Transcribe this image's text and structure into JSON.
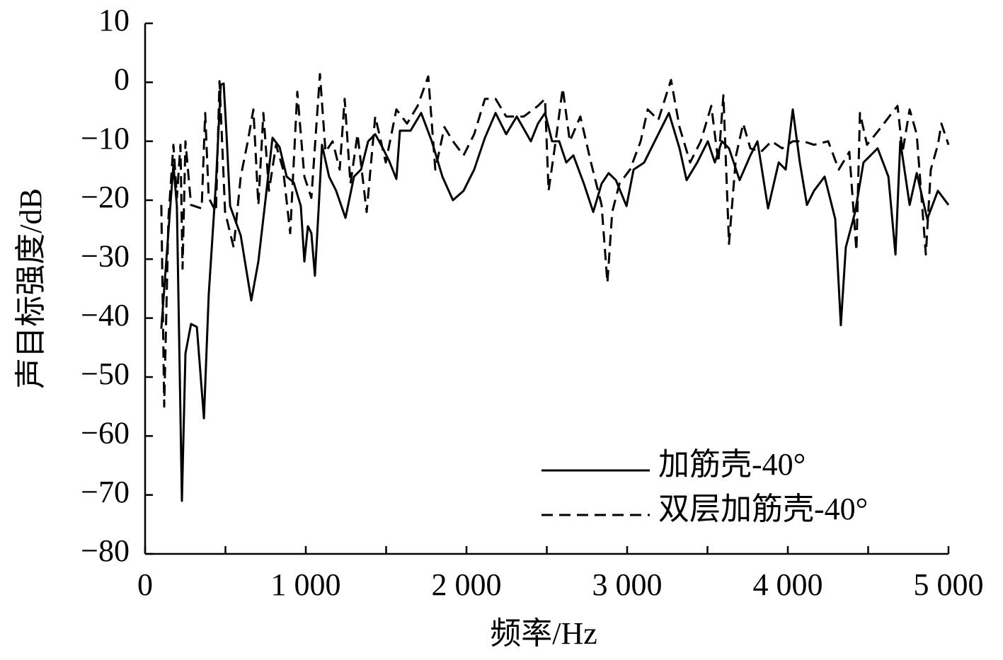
{
  "chart_data": {
    "type": "line",
    "x_label": "频率/Hz",
    "y_label": "声目标强度/dB",
    "xlim": [
      0,
      5000
    ],
    "xticks": [
      0,
      {
        "value": 1000,
        "label": "1 000"
      },
      {
        "value": 2000,
        "label": "2 000"
      },
      {
        "value": 3000,
        "label": "3 000"
      },
      {
        "value": 4000,
        "label": "4 000"
      },
      {
        "value": 5000,
        "label": "5 000"
      }
    ],
    "xminor_ticks": [
      500,
      1500,
      2500,
      3500,
      4500
    ],
    "ylim": [
      -80,
      10
    ],
    "yticks": [
      {
        "value": -80,
        "label": "−80"
      },
      {
        "value": -70,
        "label": "−70"
      },
      {
        "value": -60,
        "label": "−60"
      },
      {
        "value": -50,
        "label": "−50"
      },
      {
        "value": -40,
        "label": "−40"
      },
      {
        "value": -30,
        "label": "−30"
      },
      {
        "value": -20,
        "label": "−20"
      },
      {
        "value": -10,
        "label": "−10"
      },
      0,
      10
    ],
    "grid": false,
    "legend": "lower right",
    "series": [
      {
        "name": "加筋壳-40°",
        "color": "#000000",
        "style": "solid",
        "x": [
          101,
          154,
          176,
          198,
          229,
          251,
          286,
          322,
          366,
          396,
          441,
          471,
          489,
          507,
          529,
          595,
          661,
          705,
          749,
          793,
          837,
          881,
          925,
          969,
          991,
          1013,
          1035,
          1057,
          1079,
          1101,
          1145,
          1189,
          1247,
          1300,
          1344,
          1388,
          1432,
          1476,
          1520,
          1564,
          1586,
          1652,
          1718,
          1784,
          1850,
          1916,
          1982,
          2048,
          2115,
          2181,
          2247,
          2313,
          2401,
          2445,
          2489,
          2533,
          2577,
          2621,
          2665,
          2731,
          2789,
          2841,
          2885,
          2930,
          2996,
          3040,
          3106,
          3172,
          3260,
          3326,
          3370,
          3436,
          3502,
          3546,
          3590,
          3634,
          3700,
          3767,
          3811,
          3877,
          3943,
          3987,
          4031,
          4075,
          4119,
          4163,
          4229,
          4295,
          4330,
          4361,
          4419,
          4471,
          4559,
          4626,
          4670,
          4700,
          4758,
          4802,
          4868,
          4934,
          5000
        ],
        "values": [
          -41.8,
          -22,
          -14,
          -21,
          -71,
          -46,
          -41,
          -41.5,
          -57,
          -36,
          -17,
          -0.4,
          -0.2,
          -9,
          -21,
          -26,
          -37,
          -30.4,
          -20,
          -9.4,
          -11,
          -16,
          -17,
          -21,
          -30.4,
          -24.4,
          -25.6,
          -32.8,
          -22,
          -10.6,
          -16,
          -18.4,
          -23,
          -16,
          -14.8,
          -10,
          -8.8,
          -11,
          -13.4,
          -16.4,
          -8.2,
          -8.2,
          -5.2,
          -10,
          -16,
          -20,
          -18.4,
          -14.8,
          -9.4,
          -5.2,
          -8.8,
          -5.8,
          -10,
          -7,
          -5.2,
          -10,
          -10,
          -13.6,
          -12.4,
          -17.2,
          -22,
          -17.2,
          -15.4,
          -16.6,
          -21,
          -14.8,
          -13.6,
          -10,
          -5.2,
          -11.2,
          -16.6,
          -13.6,
          -10,
          -13.6,
          -10,
          -11.2,
          -16.6,
          -12.4,
          -10,
          -21.4,
          -13.6,
          -14.8,
          -4.6,
          -13.6,
          -20.8,
          -18.4,
          -16,
          -23.2,
          -41.2,
          -28,
          -22,
          -13.6,
          -11.2,
          -16,
          -29.2,
          -10,
          -20.8,
          -15.4,
          -23.2,
          -18.4,
          -20.8
        ]
      },
      {
        "name": "双层加筋壳-40°",
        "color": "#000000",
        "style": "dashed",
        "x": [
          101,
          119,
          145,
          176,
          198,
          220,
          233,
          251,
          286,
          352,
          374,
          396,
          441,
          463,
          498,
          551,
          595,
          639,
          674,
          705,
          736,
          771,
          815,
          859,
          903,
          947,
          991,
          1035,
          1088,
          1123,
          1167,
          1211,
          1242,
          1278,
          1322,
          1379,
          1432,
          1498,
          1564,
          1630,
          1696,
          1762,
          1806,
          1863,
          1916,
          1982,
          2048,
          2115,
          2181,
          2247,
          2357,
          2445,
          2489,
          2511,
          2555,
          2599,
          2643,
          2709,
          2775,
          2841,
          2877,
          2907,
          2952,
          3018,
          3084,
          3128,
          3194,
          3273,
          3326,
          3392,
          3458,
          3524,
          3568,
          3599,
          3634,
          3678,
          3722,
          3767,
          3833,
          3899,
          3965,
          4031,
          4097,
          4163,
          4251,
          4317,
          4383,
          4427,
          4449,
          4493,
          4581,
          4648,
          4683,
          4714,
          4758,
          4802,
          4859,
          4890,
          4934,
          4956,
          5000
        ],
        "values": [
          -20.8,
          -55,
          -23.2,
          -10.6,
          -19.6,
          -10.6,
          -31.6,
          -10,
          -20.8,
          -21.4,
          -5.2,
          -19.6,
          -22,
          0.2,
          -22,
          -28,
          -16,
          -10,
          -4.6,
          -20.8,
          -5.2,
          -18.4,
          -10.6,
          -14.8,
          -25.6,
          -1.6,
          -16,
          -19.6,
          1.4,
          -11.8,
          -10,
          -14.8,
          -2.8,
          -17.2,
          -8.8,
          -22,
          -5.8,
          -13.6,
          -4.6,
          -7,
          -4,
          1,
          -14.8,
          -7.6,
          -10,
          -12.4,
          -8.8,
          -2.8,
          -2.8,
          -5.8,
          -5.8,
          -4,
          -2.8,
          -18.4,
          -10,
          -1,
          -10,
          -5.8,
          -13.6,
          -20.8,
          -34,
          -22,
          -17.2,
          -14.8,
          -10,
          -4.6,
          -6.4,
          0.4,
          -7.6,
          -13.6,
          -10,
          -4,
          -13.6,
          -2.2,
          -27.4,
          -12.4,
          -7,
          -11.2,
          -11.8,
          -10,
          -11.2,
          -10,
          -10,
          -10.6,
          -10,
          -14.8,
          -11.8,
          -28.6,
          -5.2,
          -10.6,
          -7.6,
          -5.2,
          -4,
          -11.8,
          -4.6,
          -8.8,
          -29.2,
          -14.8,
          -10.6,
          -7,
          -10.6
        ]
      }
    ]
  }
}
